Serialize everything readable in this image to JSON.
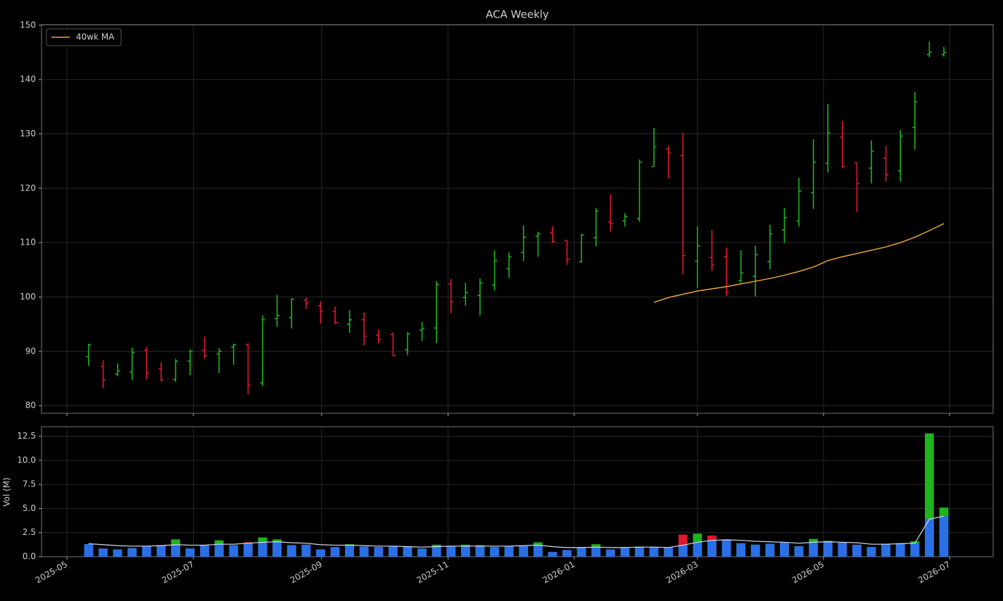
{
  "chart_data": [
    {
      "type": "ohlc",
      "title": "ACA Weekly",
      "x": [
        0,
        1,
        2,
        3,
        4,
        5,
        6,
        7,
        8,
        9,
        10,
        11,
        12,
        13,
        14,
        15,
        16,
        17,
        18,
        19,
        20,
        21,
        22,
        23,
        24,
        25,
        26,
        27,
        28,
        29,
        30,
        31,
        32,
        33,
        34,
        35,
        36,
        37,
        38,
        39,
        40,
        41,
        42,
        43,
        44,
        45,
        46,
        47,
        48,
        49,
        50,
        51,
        52,
        53,
        54,
        55,
        56,
        57,
        58,
        59
      ],
      "open": [
        89.0,
        87.2,
        85.8,
        86.2,
        90.2,
        86.8,
        84.8,
        88.2,
        90.2,
        89.5,
        90.8,
        91.2,
        84.2,
        96.0,
        96.2,
        99.4,
        98.4,
        97.4,
        95.0,
        95.8,
        93.0,
        93.1,
        90.3,
        93.9,
        94.3,
        102.4,
        99.9,
        100.3,
        102.2,
        105.2,
        108.2,
        111.2,
        111.8,
        110.4,
        106.5,
        110.9,
        113.8,
        114.0,
        114.4,
        124.0,
        127.2,
        126.0,
        106.6,
        107.3,
        107.4,
        103.0,
        103.8,
        106.5,
        112.3,
        114.0,
        119.2,
        124.6,
        129.4,
        124.7,
        123.7,
        125.5,
        123.2,
        131.2,
        144.6,
        144.6
      ],
      "high": [
        91.4,
        88.4,
        87.8,
        90.7,
        90.8,
        88.0,
        88.6,
        90.4,
        92.7,
        90.6,
        91.4,
        91.5,
        96.6,
        100.4,
        99.8,
        99.9,
        99.2,
        98.2,
        97.6,
        97.2,
        94.0,
        93.5,
        93.5,
        95.4,
        102.9,
        103.3,
        102.6,
        103.4,
        108.6,
        108.2,
        113.2,
        112.0,
        113.0,
        110.4,
        111.6,
        116.4,
        118.9,
        115.4,
        125.3,
        131.1,
        127.8,
        130.2,
        113.0,
        112.3,
        109.1,
        108.6,
        109.4,
        113.3,
        116.4,
        121.9,
        129.0,
        135.5,
        132.4,
        124.7,
        128.8,
        127.8,
        130.7,
        137.7,
        147.0,
        146.0
      ],
      "low": [
        87.3,
        83.2,
        85.4,
        84.7,
        84.8,
        84.4,
        84.4,
        85.6,
        88.7,
        86.0,
        87.5,
        82.1,
        83.6,
        94.5,
        94.2,
        97.8,
        95.1,
        95.0,
        93.4,
        91.1,
        91.5,
        89.1,
        89.3,
        91.9,
        91.5,
        97.0,
        98.4,
        96.6,
        101.2,
        103.5,
        106.6,
        107.4,
        109.9,
        105.9,
        106.3,
        109.3,
        112.0,
        113.0,
        113.8,
        124.0,
        121.8,
        104.2,
        101.6,
        104.8,
        100.2,
        102.6,
        100.1,
        105.1,
        109.9,
        112.9,
        116.2,
        122.9,
        123.7,
        115.6,
        120.9,
        121.2,
        121.2,
        127.1,
        144.1,
        144.2
      ],
      "close": [
        91.2,
        84.7,
        86.4,
        89.8,
        86.0,
        84.8,
        88.2,
        90.0,
        89.2,
        90.0,
        91.2,
        83.8,
        95.8,
        96.6,
        99.6,
        98.9,
        97.3,
        95.3,
        95.8,
        92.8,
        92.2,
        89.2,
        93.2,
        94.2,
        102.3,
        99.1,
        100.8,
        102.6,
        106.7,
        107.4,
        111.0,
        111.6,
        110.2,
        106.9,
        111.4,
        115.8,
        113.5,
        114.8,
        124.8,
        127.6,
        126.5,
        107.6,
        109.4,
        105.9,
        100.8,
        104.4,
        107.8,
        111.6,
        114.6,
        119.5,
        124.8,
        130.2,
        124.0,
        120.9,
        126.8,
        122.5,
        129.6,
        135.9,
        145.0,
        145.0
      ],
      "up_color": "#1db41d",
      "down_color": "#e0182d",
      "series": [
        {
          "name": "40wk MA",
          "color": "#e8a33c",
          "values": [
            null,
            null,
            null,
            null,
            null,
            null,
            null,
            null,
            null,
            null,
            null,
            null,
            null,
            null,
            null,
            null,
            null,
            null,
            null,
            null,
            null,
            null,
            null,
            null,
            null,
            null,
            null,
            null,
            null,
            null,
            null,
            null,
            null,
            null,
            null,
            null,
            null,
            null,
            null,
            99.0,
            99.9,
            100.5,
            101.1,
            101.5,
            101.9,
            102.4,
            102.9,
            103.4,
            104.0,
            104.7,
            105.5,
            106.7,
            107.4,
            108.0,
            108.6,
            109.2,
            110.0,
            111.0,
            112.2,
            113.5
          ]
        }
      ],
      "xlim": [
        -3.25,
        62.4
      ],
      "ylim": [
        78.6,
        150.1
      ],
      "yticks": [
        80,
        90,
        100,
        110,
        120,
        130,
        140,
        150
      ],
      "grid": true,
      "legend": "upper left"
    },
    {
      "type": "volume",
      "ylabel": "Vol (M)",
      "values": [
        1.3,
        0.85,
        0.75,
        0.9,
        1.1,
        1.2,
        1.8,
        0.85,
        1.2,
        1.7,
        1.2,
        1.5,
        2.0,
        1.8,
        1.2,
        1.25,
        0.75,
        1.0,
        1.3,
        1.05,
        1.0,
        1.1,
        1.05,
        0.85,
        1.25,
        1.1,
        1.25,
        1.2,
        1.0,
        1.1,
        1.1,
        1.5,
        0.5,
        0.7,
        1.0,
        1.3,
        0.75,
        1.0,
        1.05,
        1.0,
        0.95,
        2.3,
        2.4,
        2.2,
        1.8,
        1.4,
        1.25,
        1.35,
        1.5,
        1.1,
        1.85,
        1.65,
        1.45,
        1.25,
        1.0,
        1.35,
        1.4,
        1.6,
        12.8,
        5.1
      ],
      "ma_values": [
        1.35,
        1.25,
        1.15,
        1.1,
        1.1,
        1.15,
        1.25,
        1.2,
        1.2,
        1.3,
        1.3,
        1.4,
        1.5,
        1.55,
        1.45,
        1.4,
        1.25,
        1.2,
        1.2,
        1.15,
        1.1,
        1.1,
        1.05,
        1.0,
        1.05,
        1.1,
        1.1,
        1.1,
        1.1,
        1.1,
        1.15,
        1.2,
        1.05,
        0.95,
        0.95,
        1.0,
        0.95,
        0.95,
        1.0,
        1.0,
        0.95,
        1.2,
        1.5,
        1.7,
        1.75,
        1.7,
        1.6,
        1.55,
        1.5,
        1.4,
        1.5,
        1.55,
        1.5,
        1.45,
        1.3,
        1.3,
        1.35,
        1.4,
        3.9,
        4.2
      ],
      "ma_color": "#d8dcf0",
      "base_color": "#2a6ee8",
      "xlim": [
        -3.25,
        62.4
      ],
      "ylim": [
        0,
        13.5
      ],
      "yticks": [
        {
          "value": 0,
          "label": "0.0"
        },
        {
          "value": 2.5,
          "label": "2.5"
        },
        {
          "value": 5,
          "label": "5.0"
        },
        {
          "value": 7.5,
          "label": "7.5"
        },
        {
          "value": 10,
          "label": "10.0"
        },
        {
          "value": 12.5,
          "label": "12.5"
        }
      ],
      "xticks": [
        {
          "value": -1.5,
          "label": "2025-05"
        },
        {
          "value": 7.23,
          "label": "2025-07"
        },
        {
          "value": 16.07,
          "label": "2025-09"
        },
        {
          "value": 24.8,
          "label": "2025-11"
        },
        {
          "value": 33.5,
          "label": "2026-01"
        },
        {
          "value": 42.0,
          "label": "2026-03"
        },
        {
          "value": 50.7,
          "label": "2026-05"
        },
        {
          "value": 59.4,
          "label": "2026-07"
        }
      ],
      "grid": true
    }
  ]
}
